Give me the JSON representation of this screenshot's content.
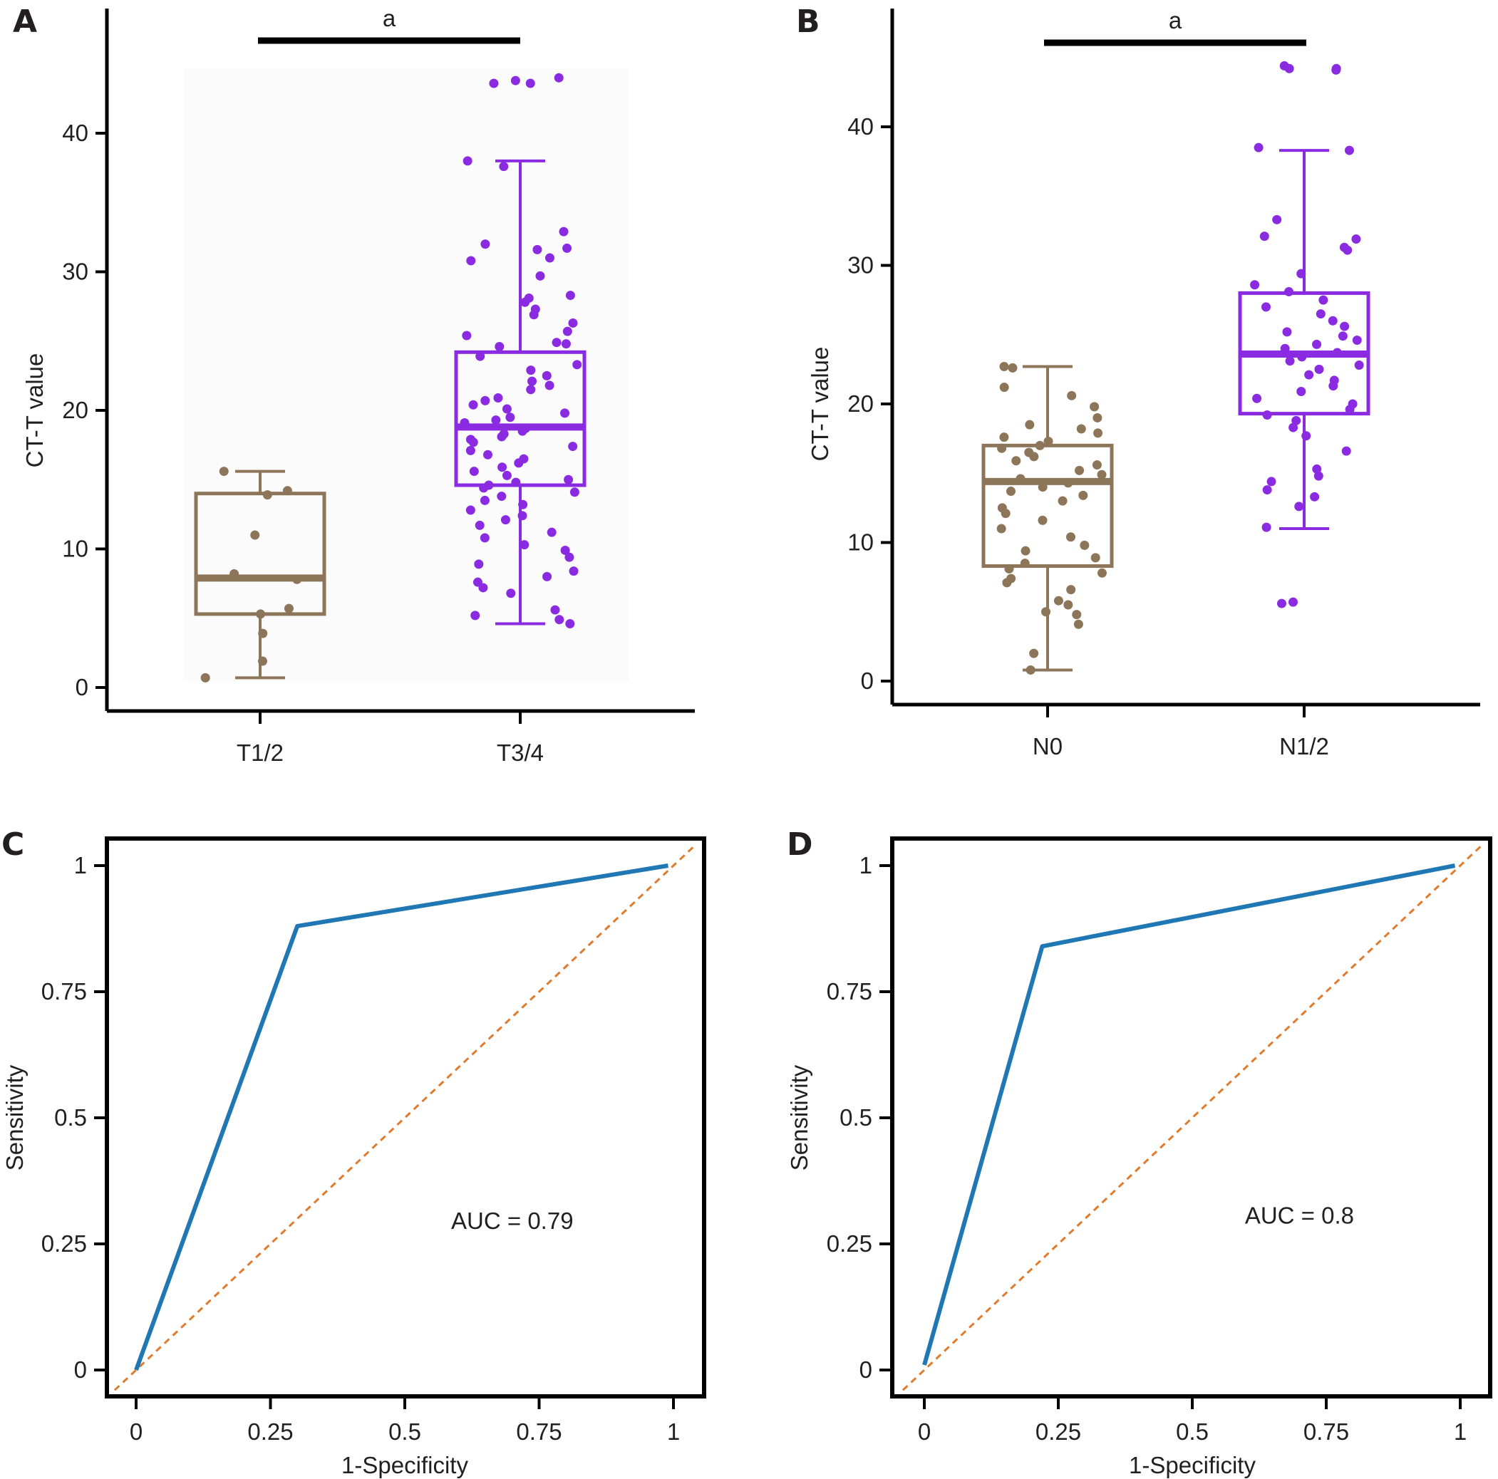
{
  "colors": {
    "group_low": "#8c7558",
    "group_high": "#8a2be2",
    "roc_line": "#1f77b4",
    "diagonal": "#e07b2e",
    "axis": "#000000",
    "panel_bg": "#fbfbfc"
  },
  "chart_data": [
    {
      "id": "A",
      "type": "box",
      "panel_label": "A",
      "ylabel": "CT-T value",
      "xlabel": "",
      "ylim": [
        -1.5,
        48.5
      ],
      "yticks": [
        0,
        10,
        20,
        30,
        40
      ],
      "ytick_labels": [
        "0",
        "10",
        "20",
        "30",
        "40"
      ],
      "categories": [
        "T1/2",
        "T3/4"
      ],
      "significance": {
        "label": "a",
        "between": [
          "T1/2",
          "T3/4"
        ]
      },
      "boxes": [
        {
          "category": "T1/2",
          "color": "#8c7558",
          "min": 0.7,
          "q1": 5.3,
          "median": 7.9,
          "q3": 14.0,
          "max": 15.6,
          "points": [
            15.6,
            14.2,
            13.9,
            11.0,
            8.2,
            7.8,
            5.7,
            5.3,
            3.9,
            1.9,
            0.7
          ]
        },
        {
          "category": "T3/4",
          "color": "#8a2be2",
          "min": 4.6,
          "q1": 14.6,
          "median": 18.8,
          "q3": 24.2,
          "max": 38.0,
          "points": [
            44.0,
            43.8,
            43.6,
            43.6,
            38.0,
            37.6,
            32.9,
            32.0,
            31.7,
            31.6,
            31.0,
            30.8,
            29.7,
            28.3,
            28.1,
            27.8,
            27.3,
            26.9,
            26.3,
            25.7,
            25.4,
            24.9,
            24.8,
            24.6,
            23.9,
            23.3,
            22.9,
            22.5,
            22.1,
            21.8,
            21.5,
            20.9,
            20.7,
            20.4,
            20.1,
            19.8,
            19.5,
            19.3,
            19.1,
            18.9,
            18.7,
            18.5,
            18.3,
            18.1,
            17.9,
            17.7,
            17.4,
            17.1,
            16.8,
            16.5,
            16.2,
            15.9,
            15.6,
            15.3,
            15.0,
            14.8,
            14.6,
            14.4,
            14.1,
            13.8,
            13.5,
            13.2,
            12.8,
            12.4,
            12.1,
            11.7,
            11.2,
            10.8,
            10.3,
            9.9,
            9.4,
            8.9,
            8.4,
            8.0,
            7.6,
            7.2,
            6.8,
            5.6,
            5.2,
            4.9,
            4.6
          ]
        }
      ]
    },
    {
      "id": "B",
      "type": "box",
      "panel_label": "B",
      "ylabel": "CT-T value",
      "xlabel": "",
      "ylim": [
        -2,
        48
      ],
      "yticks": [
        0,
        10,
        20,
        30,
        40
      ],
      "ytick_labels": [
        "0",
        "10",
        "20",
        "30",
        "40"
      ],
      "categories": [
        "N0",
        "N1/2"
      ],
      "significance": {
        "label": "a",
        "between": [
          "N0",
          "N1/2"
        ]
      },
      "boxes": [
        {
          "category": "N0",
          "color": "#8c7558",
          "min": 0.8,
          "q1": 8.3,
          "median": 14.4,
          "q3": 17.0,
          "max": 22.7,
          "points": [
            22.7,
            22.6,
            21.2,
            20.6,
            19.8,
            19.0,
            18.5,
            18.2,
            17.9,
            17.6,
            17.3,
            17.0,
            16.8,
            16.5,
            16.2,
            15.9,
            15.6,
            15.2,
            14.9,
            14.6,
            14.3,
            14.0,
            13.7,
            13.4,
            13.0,
            12.5,
            12.1,
            11.6,
            11.0,
            10.4,
            9.8,
            9.4,
            8.9,
            8.5,
            8.1,
            7.8,
            7.4,
            7.1,
            6.6,
            5.8,
            5.5,
            5.0,
            4.8,
            4.1,
            2.0,
            0.8
          ]
        },
        {
          "category": "N1/2",
          "color": "#8a2be2",
          "min": 11.0,
          "q1": 19.3,
          "median": 23.6,
          "q3": 28.0,
          "max": 38.3,
          "points": [
            44.4,
            44.2,
            44.2,
            44.1,
            38.5,
            38.3,
            33.3,
            32.1,
            31.9,
            31.3,
            31.1,
            29.4,
            28.6,
            28.1,
            27.5,
            27.0,
            26.5,
            26.0,
            25.6,
            25.2,
            24.9,
            24.6,
            24.3,
            24.0,
            23.7,
            23.4,
            23.1,
            22.8,
            22.5,
            22.1,
            21.7,
            21.3,
            20.9,
            20.4,
            20.0,
            19.6,
            19.2,
            18.8,
            18.3,
            17.7,
            16.6,
            15.3,
            14.8,
            14.4,
            13.8,
            13.3,
            12.6,
            11.1,
            5.7,
            5.6
          ]
        }
      ]
    },
    {
      "id": "C",
      "type": "line",
      "panel_label": "C",
      "xlabel": "1-Specificity",
      "ylabel": "Sensitivity",
      "xlim": [
        -0.04,
        1.04
      ],
      "ylim": [
        -0.04,
        1.06
      ],
      "xticks": [
        0,
        0.25,
        0.5,
        0.75,
        1
      ],
      "xtick_labels": [
        "0",
        "0.25",
        "0.5",
        "0.75",
        "1"
      ],
      "yticks": [
        0,
        0.25,
        0.5,
        0.75,
        1
      ],
      "ytick_labels": [
        "0",
        "0.25",
        "0.5",
        "0.75",
        "1"
      ],
      "annotation": "AUC = 0.79",
      "annotation_at": [
        0.7,
        0.28
      ],
      "series": [
        {
          "x": [
            0,
            0.3,
            0.99
          ],
          "y": [
            0,
            0.88,
            1.0
          ]
        }
      ],
      "reference_line": {
        "x": [
          -0.04,
          1.04
        ],
        "y": [
          -0.04,
          1.04
        ]
      }
    },
    {
      "id": "D",
      "type": "line",
      "panel_label": "D",
      "xlabel": "1-Specificity",
      "ylabel": "Sensitivity",
      "xlim": [
        -0.04,
        1.04
      ],
      "ylim": [
        -0.04,
        1.06
      ],
      "xticks": [
        0,
        0.25,
        0.5,
        0.75,
        1
      ],
      "xtick_labels": [
        "0",
        "0.25",
        "0.5",
        "0.75",
        "1"
      ],
      "yticks": [
        0,
        0.25,
        0.5,
        0.75,
        1
      ],
      "ytick_labels": [
        "0",
        "0.25",
        "0.5",
        "0.75",
        "1"
      ],
      "annotation": "AUC = 0.8",
      "annotation_at": [
        0.7,
        0.29
      ],
      "series": [
        {
          "x": [
            0,
            0.22,
            0.99
          ],
          "y": [
            0.01,
            0.84,
            1.0
          ]
        }
      ],
      "reference_line": {
        "x": [
          -0.04,
          1.04
        ],
        "y": [
          -0.04,
          1.04
        ]
      }
    }
  ]
}
